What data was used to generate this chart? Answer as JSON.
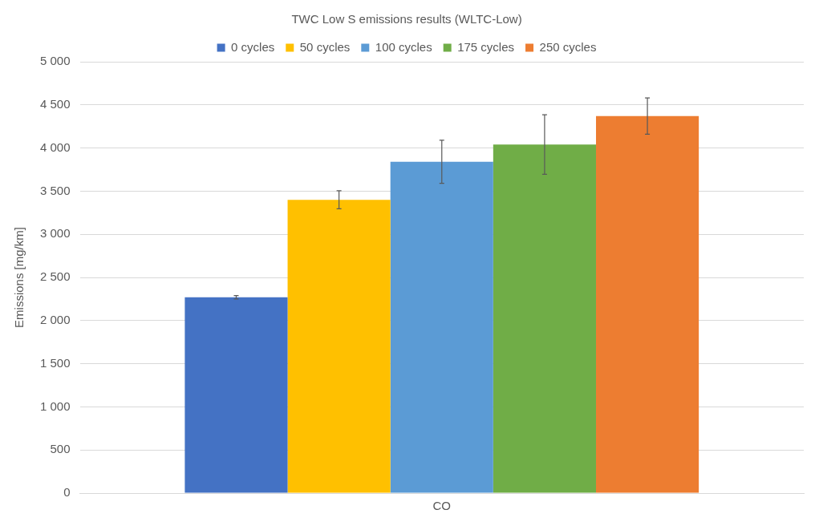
{
  "chart_data": {
    "type": "bar",
    "title": "TWC Low S emissions results (WLTC-Low)",
    "ylabel": "Emissions [mg/km]",
    "categories": [
      "CO"
    ],
    "series": [
      {
        "name": "0 cycles",
        "color": "#4472c4",
        "values": [
          2270
        ],
        "errors": [
          20
        ]
      },
      {
        "name": "50 cycles",
        "color": "#ffc000",
        "values": [
          3400
        ],
        "errors": [
          105
        ]
      },
      {
        "name": "100 cycles",
        "color": "#5b9bd5",
        "values": [
          3840
        ],
        "errors": [
          250
        ]
      },
      {
        "name": "175 cycles",
        "color": "#70ad47",
        "values": [
          4040
        ],
        "errors": [
          345
        ]
      },
      {
        "name": "250 cycles",
        "color": "#ed7d31",
        "values": [
          4370
        ],
        "errors": [
          210
        ]
      }
    ],
    "ylim": [
      0,
      5000
    ],
    "yticks": [
      {
        "value": 0,
        "label": "0"
      },
      {
        "value": 500,
        "label": "500"
      },
      {
        "value": 1000,
        "label": "1 000"
      },
      {
        "value": 1500,
        "label": "1 500"
      },
      {
        "value": 2000,
        "label": "2 000"
      },
      {
        "value": 2500,
        "label": "2 500"
      },
      {
        "value": 3000,
        "label": "3 000"
      },
      {
        "value": 3500,
        "label": "3 500"
      },
      {
        "value": 4000,
        "label": "4 000"
      },
      {
        "value": 4500,
        "label": "4 500"
      },
      {
        "value": 5000,
        "label": "5 000"
      }
    ],
    "grid": "y",
    "legend": "top"
  }
}
